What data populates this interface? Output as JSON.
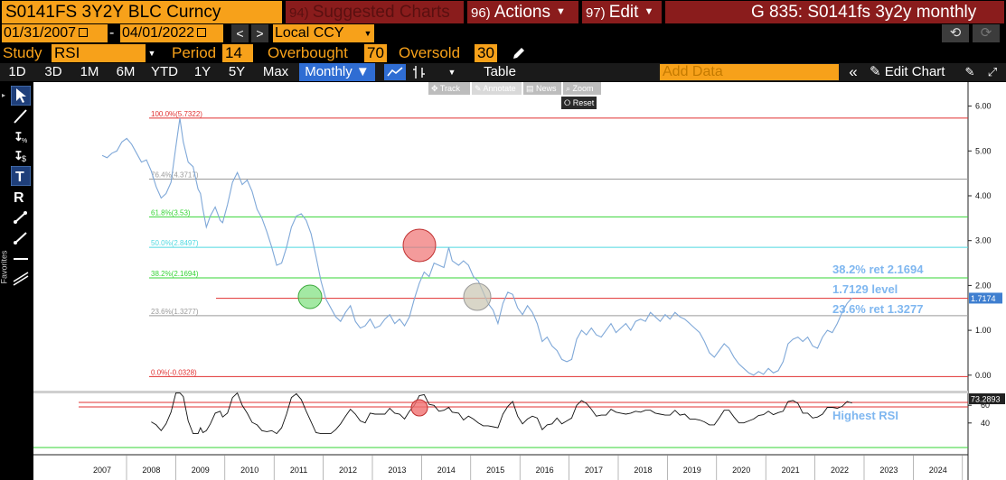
{
  "header": {
    "ticker": "S0141FS 3Y2Y BLC Curncy",
    "menus": [
      {
        "num": "94)",
        "label": "Suggested Charts"
      },
      {
        "num": "96)",
        "label": "Actions"
      },
      {
        "num": "97)",
        "label": "Edit"
      }
    ],
    "title": "G 835: S0141fs 3y2y monthly"
  },
  "range": {
    "start": "01/31/2007",
    "sep": "-",
    "end": "04/01/2022",
    "prev": "<",
    "next": ">",
    "currency": "Local CCY"
  },
  "study": {
    "label": "Study",
    "value": "RSI",
    "period_label": "Period",
    "period": "14",
    "overbought_label": "Overbought",
    "overbought": "70",
    "oversold_label": "Oversold",
    "oversold": "30"
  },
  "toolbar": {
    "periods": [
      "1D",
      "3D",
      "1M",
      "6M",
      "YTD",
      "1Y",
      "5Y",
      "Max"
    ],
    "frequency": "Monthly",
    "table": "Table",
    "add_data_placeholder": "Add Data",
    "edit_chart": "Edit Chart"
  },
  "chart_buttons": [
    "Track",
    "Annotate",
    "News",
    "Zoom"
  ],
  "reset": "Reset",
  "favorites": "Favorites",
  "colors": {
    "orange": "#f7a11a",
    "menu_red": "#8a1c1c",
    "line": "#7fa8d8",
    "fib_red": "#e03030",
    "fib_green": "#36d436",
    "fib_cyan": "#4fd9e0",
    "fib_gray": "#9a9a9a",
    "annotation": "#7fb7f0"
  },
  "chart_data": {
    "type": "line",
    "x_axis": [
      "2007",
      "2008",
      "2009",
      "2010",
      "2011",
      "2012",
      "2013",
      "2014",
      "2015",
      "2016",
      "2017",
      "2018",
      "2019",
      "2020",
      "2021",
      "2022",
      "2023",
      "2024"
    ],
    "price_axis": [
      "6.00",
      "5.00",
      "4.00",
      "3.00",
      "2.00",
      "1.00",
      "0.00"
    ],
    "rsi_axis": [
      "60",
      "40"
    ],
    "last_price": "1.7174",
    "last_rsi": "73.2893",
    "fib_levels": [
      {
        "label": "100.0%(5.7322)",
        "value": 5.7322
      },
      {
        "label": "76.4%(4.3717)",
        "value": 4.3717
      },
      {
        "label": "61.8%(3.53)",
        "value": 3.53
      },
      {
        "label": "50.0%(2.8497)",
        "value": 2.8497
      },
      {
        "label": "38.2%(2.1694)",
        "value": 2.1694
      },
      {
        "label": "23.6%(1.3277)",
        "value": 1.3277
      },
      {
        "label": "0.0%(-0.0328)",
        "value": -0.0328
      }
    ],
    "annotations": [
      "38.2% ret 2.1694",
      "1.7129 level",
      "23.6% ret 1.3277",
      "Highest RSI"
    ],
    "level_line": 1.7129,
    "series": [
      {
        "values": [
          [
            2007.0,
            4.9
          ],
          [
            2007.1,
            4.85
          ],
          [
            2007.2,
            4.95
          ],
          [
            2007.3,
            5.0
          ],
          [
            2007.4,
            5.2
          ],
          [
            2007.5,
            5.28
          ],
          [
            2007.6,
            5.15
          ],
          [
            2007.7,
            4.95
          ],
          [
            2007.8,
            4.75
          ],
          [
            2007.9,
            4.8
          ],
          [
            2008.0,
            4.55
          ],
          [
            2008.1,
            4.2
          ],
          [
            2008.2,
            3.95
          ],
          [
            2008.3,
            4.05
          ],
          [
            2008.4,
            4.3
          ],
          [
            2008.5,
            5.1
          ],
          [
            2008.58,
            5.73
          ],
          [
            2008.65,
            5.2
          ],
          [
            2008.75,
            4.75
          ],
          [
            2008.85,
            4.65
          ],
          [
            2008.95,
            4.15
          ],
          [
            2009.0,
            4.05
          ],
          [
            2009.05,
            3.7
          ],
          [
            2009.12,
            3.3
          ],
          [
            2009.2,
            3.55
          ],
          [
            2009.3,
            3.75
          ],
          [
            2009.4,
            3.45
          ],
          [
            2009.45,
            3.4
          ],
          [
            2009.55,
            3.8
          ],
          [
            2009.65,
            4.3
          ],
          [
            2009.75,
            4.52
          ],
          [
            2009.85,
            4.25
          ],
          [
            2009.95,
            4.35
          ],
          [
            2010.05,
            4.1
          ],
          [
            2010.15,
            3.7
          ],
          [
            2010.25,
            3.5
          ],
          [
            2010.35,
            3.2
          ],
          [
            2010.45,
            2.85
          ],
          [
            2010.55,
            2.45
          ],
          [
            2010.65,
            2.5
          ],
          [
            2010.75,
            2.85
          ],
          [
            2010.85,
            3.3
          ],
          [
            2010.95,
            3.55
          ],
          [
            2011.05,
            3.6
          ],
          [
            2011.15,
            3.45
          ],
          [
            2011.25,
            3.15
          ],
          [
            2011.35,
            2.65
          ],
          [
            2011.45,
            2.1
          ],
          [
            2011.55,
            1.7
          ],
          [
            2011.65,
            1.5
          ],
          [
            2011.75,
            1.3
          ],
          [
            2011.85,
            1.2
          ],
          [
            2011.95,
            1.4
          ],
          [
            2012.05,
            1.55
          ],
          [
            2012.15,
            1.2
          ],
          [
            2012.25,
            1.05
          ],
          [
            2012.35,
            1.1
          ],
          [
            2012.45,
            1.25
          ],
          [
            2012.55,
            1.05
          ],
          [
            2012.65,
            1.1
          ],
          [
            2012.75,
            1.25
          ],
          [
            2012.85,
            1.35
          ],
          [
            2012.95,
            1.15
          ],
          [
            2013.05,
            1.25
          ],
          [
            2013.15,
            1.1
          ],
          [
            2013.25,
            1.3
          ],
          [
            2013.35,
            1.7
          ],
          [
            2013.45,
            2.05
          ],
          [
            2013.55,
            2.3
          ],
          [
            2013.65,
            2.2
          ],
          [
            2013.75,
            2.5
          ],
          [
            2013.85,
            2.45
          ],
          [
            2013.95,
            2.4
          ],
          [
            2014.05,
            2.85
          ],
          [
            2014.12,
            2.55
          ],
          [
            2014.25,
            2.45
          ],
          [
            2014.35,
            2.55
          ],
          [
            2014.45,
            2.45
          ],
          [
            2014.55,
            2.2
          ],
          [
            2014.65,
            2.1
          ],
          [
            2014.75,
            1.85
          ],
          [
            2014.85,
            1.6
          ],
          [
            2014.95,
            1.45
          ],
          [
            2015.05,
            1.15
          ],
          [
            2015.15,
            1.6
          ],
          [
            2015.25,
            1.85
          ],
          [
            2015.35,
            1.8
          ],
          [
            2015.45,
            1.5
          ],
          [
            2015.55,
            1.35
          ],
          [
            2015.65,
            1.55
          ],
          [
            2015.75,
            1.4
          ],
          [
            2015.85,
            1.15
          ],
          [
            2015.95,
            0.75
          ],
          [
            2016.05,
            0.85
          ],
          [
            2016.15,
            0.65
          ],
          [
            2016.25,
            0.55
          ],
          [
            2016.35,
            0.35
          ],
          [
            2016.45,
            0.3
          ],
          [
            2016.55,
            0.35
          ],
          [
            2016.65,
            0.8
          ],
          [
            2016.75,
            1.0
          ],
          [
            2016.85,
            0.9
          ],
          [
            2016.95,
            1.05
          ],
          [
            2017.05,
            0.9
          ],
          [
            2017.15,
            0.85
          ],
          [
            2017.25,
            1.0
          ],
          [
            2017.35,
            1.15
          ],
          [
            2017.45,
            0.95
          ],
          [
            2017.55,
            1.05
          ],
          [
            2017.65,
            1.15
          ],
          [
            2017.75,
            1.0
          ],
          [
            2017.85,
            1.2
          ],
          [
            2017.95,
            1.25
          ],
          [
            2018.05,
            1.2
          ],
          [
            2018.15,
            1.4
          ],
          [
            2018.25,
            1.3
          ],
          [
            2018.35,
            1.2
          ],
          [
            2018.45,
            1.35
          ],
          [
            2018.55,
            1.25
          ],
          [
            2018.65,
            1.4
          ],
          [
            2018.75,
            1.3
          ],
          [
            2018.85,
            1.25
          ],
          [
            2018.95,
            1.15
          ],
          [
            2019.05,
            1.05
          ],
          [
            2019.15,
            0.95
          ],
          [
            2019.25,
            0.75
          ],
          [
            2019.35,
            0.5
          ],
          [
            2019.45,
            0.4
          ],
          [
            2019.55,
            0.55
          ],
          [
            2019.65,
            0.7
          ],
          [
            2019.75,
            0.6
          ],
          [
            2019.85,
            0.4
          ],
          [
            2019.95,
            0.25
          ],
          [
            2020.05,
            0.15
          ],
          [
            2020.15,
            0.05
          ],
          [
            2020.25,
            0.0
          ],
          [
            2020.35,
            0.08
          ],
          [
            2020.45,
            0.02
          ],
          [
            2020.55,
            0.15
          ],
          [
            2020.65,
            0.05
          ],
          [
            2020.75,
            0.1
          ],
          [
            2020.85,
            0.3
          ],
          [
            2020.95,
            0.7
          ],
          [
            2021.05,
            0.8
          ],
          [
            2021.15,
            0.85
          ],
          [
            2021.25,
            0.75
          ],
          [
            2021.35,
            0.85
          ],
          [
            2021.45,
            0.65
          ],
          [
            2021.55,
            0.6
          ],
          [
            2021.65,
            0.85
          ],
          [
            2021.75,
            1.0
          ],
          [
            2021.85,
            0.95
          ],
          [
            2021.95,
            1.15
          ],
          [
            2022.05,
            1.4
          ],
          [
            2022.15,
            1.6
          ],
          [
            2022.25,
            1.72
          ]
        ]
      }
    ]
  }
}
